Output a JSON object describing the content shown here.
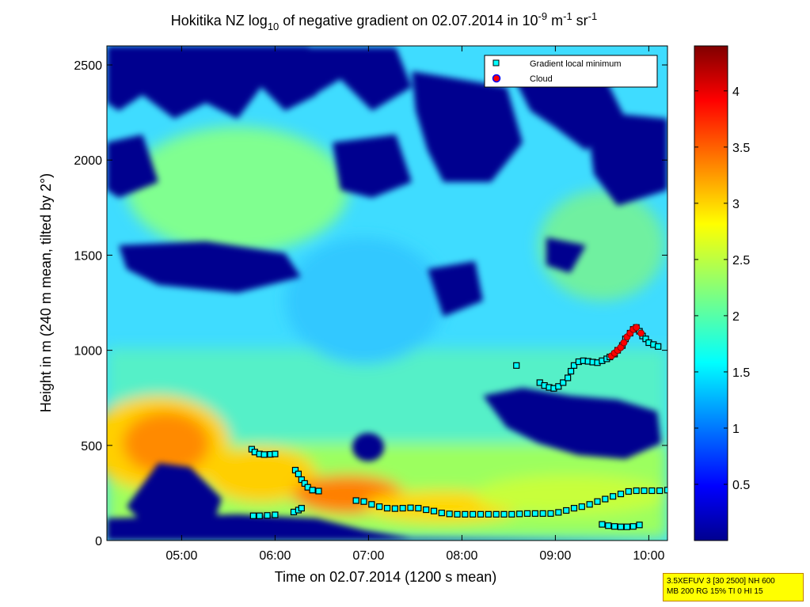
{
  "chart_data": {
    "type": "heatmap",
    "title_parts": {
      "a": "Hokitika NZ log",
      "sub": "10",
      "b": " of negative gradient on 02.07.2014 in 10",
      "sup1": "-9",
      "c": " m",
      "sup2": "-1",
      "d": " sr",
      "sup3": "-1"
    },
    "xlabel": "Time on 02.07.2014 (1200 s mean)",
    "ylabel": "Height in m (240 m mean, tilted by 2°)",
    "xlim": [
      "04:12",
      "10:12"
    ],
    "ylim": [
      0,
      2600
    ],
    "x_ticks": [
      "05:00",
      "06:00",
      "07:00",
      "08:00",
      "09:00",
      "10:00"
    ],
    "y_ticks": [
      "0",
      "500",
      "1000",
      "1500",
      "2000",
      "2500"
    ],
    "colorbar": {
      "range": [
        0,
        4.4
      ],
      "ticks": [
        "0.5",
        "1",
        "1.5",
        "2",
        "2.5",
        "3",
        "3.5",
        "4"
      ],
      "colormap": "jet"
    },
    "legend": {
      "position": "top-right",
      "entries": [
        "Gradient local minimum",
        "Cloud"
      ]
    },
    "series": [
      {
        "name": "Gradient local minimum",
        "color": "#00ffff",
        "points": [
          [
            "05:45",
            480
          ],
          [
            "05:47",
            465
          ],
          [
            "05:50",
            455
          ],
          [
            "05:53",
            452
          ],
          [
            "05:57",
            453
          ],
          [
            "06:00",
            455
          ],
          [
            "06:13",
            370
          ],
          [
            "06:15",
            350
          ],
          [
            "06:17",
            320
          ],
          [
            "06:19",
            300
          ],
          [
            "06:21",
            280
          ],
          [
            "06:24",
            265
          ],
          [
            "06:28",
            260
          ],
          [
            "05:46",
            130
          ],
          [
            "05:50",
            130
          ],
          [
            "05:55",
            132
          ],
          [
            "06:00",
            135
          ],
          [
            "06:12",
            150
          ],
          [
            "06:15",
            160
          ],
          [
            "06:17",
            170
          ],
          [
            "06:52",
            210
          ],
          [
            "06:57",
            205
          ],
          [
            "07:02",
            190
          ],
          [
            "07:07",
            178
          ],
          [
            "07:12",
            170
          ],
          [
            "07:17",
            168
          ],
          [
            "07:22",
            170
          ],
          [
            "07:27",
            172
          ],
          [
            "07:32",
            170
          ],
          [
            "07:37",
            162
          ],
          [
            "07:42",
            155
          ],
          [
            "07:47",
            145
          ],
          [
            "07:52",
            140
          ],
          [
            "07:57",
            138
          ],
          [
            "08:02",
            138
          ],
          [
            "08:07",
            138
          ],
          [
            "08:12",
            138
          ],
          [
            "08:17",
            138
          ],
          [
            "08:22",
            138
          ],
          [
            "08:27",
            138
          ],
          [
            "08:32",
            138
          ],
          [
            "08:37",
            140
          ],
          [
            "08:42",
            142
          ],
          [
            "08:47",
            142
          ],
          [
            "08:52",
            142
          ],
          [
            "08:57",
            142
          ],
          [
            "09:02",
            148
          ],
          [
            "09:07",
            158
          ],
          [
            "09:12",
            170
          ],
          [
            "09:17",
            178
          ],
          [
            "09:22",
            190
          ],
          [
            "09:27",
            205
          ],
          [
            "09:32",
            218
          ],
          [
            "09:37",
            232
          ],
          [
            "09:42",
            245
          ],
          [
            "09:47",
            258
          ],
          [
            "09:52",
            262
          ],
          [
            "09:57",
            262
          ],
          [
            "10:02",
            262
          ],
          [
            "10:07",
            262
          ],
          [
            "10:12",
            265
          ],
          [
            "09:30",
            85
          ],
          [
            "09:34",
            78
          ],
          [
            "09:38",
            74
          ],
          [
            "09:42",
            72
          ],
          [
            "09:46",
            72
          ],
          [
            "09:50",
            74
          ],
          [
            "09:54",
            82
          ],
          [
            "08:35",
            920
          ],
          [
            "08:50",
            830
          ],
          [
            "08:53",
            815
          ],
          [
            "08:56",
            805
          ],
          [
            "08:59",
            800
          ],
          [
            "09:02",
            810
          ],
          [
            "09:05",
            830
          ],
          [
            "09:08",
            855
          ],
          [
            "09:10",
            890
          ],
          [
            "09:12",
            920
          ],
          [
            "09:15",
            940
          ],
          [
            "09:18",
            945
          ],
          [
            "09:21",
            942
          ],
          [
            "09:24",
            938
          ],
          [
            "09:27",
            935
          ],
          [
            "09:30",
            945
          ],
          [
            "09:33",
            955
          ],
          [
            "09:35",
            965
          ],
          [
            "09:38",
            980
          ],
          [
            "09:40",
            1000
          ],
          [
            "09:43",
            1025
          ],
          [
            "09:45",
            1060
          ],
          [
            "09:48",
            1090
          ],
          [
            "09:50",
            1110
          ],
          [
            "09:52",
            1120
          ],
          [
            "09:54",
            1100
          ],
          [
            "09:56",
            1075
          ],
          [
            "09:58",
            1060
          ],
          [
            "10:00",
            1040
          ],
          [
            "10:03",
            1030
          ],
          [
            "10:06",
            1020
          ]
        ]
      },
      {
        "name": "Cloud",
        "color": "#ff0000",
        "points": [
          [
            "09:36",
            970
          ],
          [
            "09:38",
            985
          ],
          [
            "09:40",
            1000
          ],
          [
            "09:42",
            1015
          ],
          [
            "09:44",
            1040
          ],
          [
            "09:46",
            1070
          ],
          [
            "09:48",
            1090
          ],
          [
            "09:50",
            1110
          ],
          [
            "09:52",
            1120
          ],
          [
            "09:55",
            1090
          ]
        ]
      }
    ],
    "info_lines": [
      "3.5XEFUV 3 [30 2500] NH 600",
      "MB 200 RG 15% TI 0 HI 15"
    ]
  }
}
